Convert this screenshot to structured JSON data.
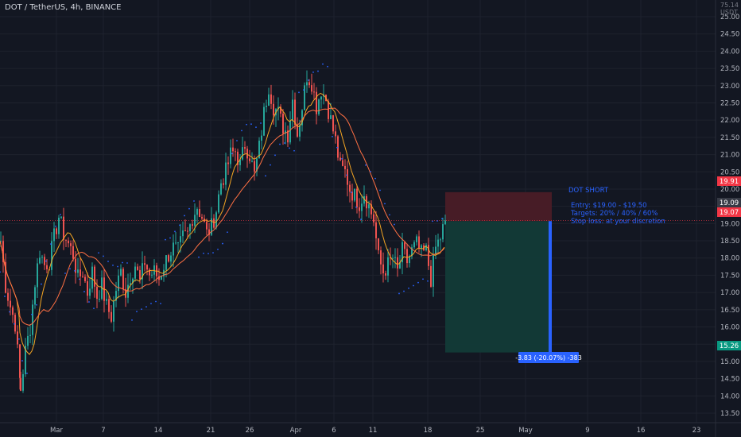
{
  "header": {
    "symbol_line": "DOT / TetherUS, 4h, BINANCE",
    "currency": "USDT",
    "scale_label": "75.14"
  },
  "colors": {
    "background": "#131722",
    "grid": "#1e222d",
    "up": "#26a69a",
    "down": "#ef5350",
    "ma_fast": "#f5a623",
    "ma_slow": "#ff7043",
    "sar": "#2962ff",
    "stop_zone": "#4a1c27",
    "target_zone": "#123b38",
    "note": "#2962ff"
  },
  "chart_data": {
    "type": "candlestick",
    "title": "DOT / TetherUS, 4h, BINANCE",
    "y_unit": "USDT",
    "ylim": [
      12.9,
      25.2
    ],
    "y_ticks": [
      13.5,
      14.0,
      14.5,
      15.0,
      15.5,
      16.0,
      16.5,
      17.0,
      17.5,
      18.0,
      18.5,
      19.0,
      19.5,
      20.0,
      20.5,
      21.0,
      21.5,
      22.0,
      22.5,
      23.0,
      23.5,
      24.0,
      24.5,
      25.0
    ],
    "x_ticks": [
      "Mar",
      "7",
      "14",
      "21",
      "26",
      "Apr",
      "6",
      "11",
      "18",
      "25",
      "May",
      "9",
      "16",
      "23"
    ],
    "grid": true,
    "price_path_close": [
      [
        0,
        18.5
      ],
      [
        6,
        17.2
      ],
      [
        12,
        16.6
      ],
      [
        18,
        16.1
      ],
      [
        25,
        14.2
      ],
      [
        31,
        15.3
      ],
      [
        37,
        16.0
      ],
      [
        43,
        17.3
      ],
      [
        49,
        18.2
      ],
      [
        55,
        17.8
      ],
      [
        61,
        17.9
      ],
      [
        67,
        18.6
      ],
      [
        73,
        19.2
      ],
      [
        79,
        18.7
      ],
      [
        85,
        18.4
      ],
      [
        91,
        18.1
      ],
      [
        97,
        17.4
      ],
      [
        103,
        17.6
      ],
      [
        109,
        17.0
      ],
      [
        115,
        17.6
      ],
      [
        121,
        16.9
      ],
      [
        127,
        17.2
      ],
      [
        133,
        16.6
      ],
      [
        139,
        16.3
      ],
      [
        145,
        17.1
      ],
      [
        151,
        17.6
      ],
      [
        157,
        17.0
      ],
      [
        163,
        17.5
      ],
      [
        169,
        17.8
      ],
      [
        175,
        17.3
      ],
      [
        181,
        17.9
      ],
      [
        187,
        17.5
      ],
      [
        193,
        17.6
      ],
      [
        199,
        17.4
      ],
      [
        205,
        17.8
      ],
      [
        211,
        18.1
      ],
      [
        217,
        18.3
      ],
      [
        223,
        18.2
      ],
      [
        229,
        18.6
      ],
      [
        235,
        18.7
      ],
      [
        241,
        19.2
      ],
      [
        247,
        19.5
      ],
      [
        253,
        19.2
      ],
      [
        259,
        18.7
      ],
      [
        265,
        18.9
      ],
      [
        271,
        19.4
      ],
      [
        277,
        20.2
      ],
      [
        283,
        20.5
      ],
      [
        289,
        21.0
      ],
      [
        295,
        21.1
      ],
      [
        301,
        20.7
      ],
      [
        307,
        21.3
      ],
      [
        313,
        21.0
      ],
      [
        319,
        20.4
      ],
      [
        325,
        21.2
      ],
      [
        331,
        22.2
      ],
      [
        337,
        23.0
      ],
      [
        343,
        22.4
      ],
      [
        349,
        22.2
      ],
      [
        355,
        21.8
      ],
      [
        361,
        21.6
      ],
      [
        367,
        22.6
      ],
      [
        373,
        21.6
      ],
      [
        379,
        22.4
      ],
      [
        385,
        23.3
      ],
      [
        391,
        23.1
      ],
      [
        397,
        22.4
      ],
      [
        403,
        22.9
      ],
      [
        409,
        22.6
      ],
      [
        415,
        22.0
      ],
      [
        421,
        21.4
      ],
      [
        427,
        20.6
      ],
      [
        433,
        20.5
      ],
      [
        439,
        20.0
      ],
      [
        445,
        19.8
      ],
      [
        451,
        19.6
      ],
      [
        457,
        19.9
      ],
      [
        463,
        19.5
      ],
      [
        469,
        19.1
      ],
      [
        475,
        18.0
      ],
      [
        481,
        17.6
      ],
      [
        487,
        17.8
      ],
      [
        493,
        18.0
      ],
      [
        499,
        17.6
      ],
      [
        505,
        18.2
      ],
      [
        511,
        17.9
      ],
      [
        517,
        18.2
      ],
      [
        523,
        18.4
      ],
      [
        529,
        18.1
      ],
      [
        535,
        18.2
      ],
      [
        541,
        17.4
      ],
      [
        547,
        18.3
      ],
      [
        553,
        18.6
      ],
      [
        559,
        19.09
      ]
    ],
    "trade_plan": {
      "name": "DOT SHORT",
      "entry_range": "$19.00 - $19.50",
      "targets": "20% / 40% / 60%",
      "stop_loss": "at your discretion",
      "stop_price": 19.91,
      "entry_price": 19.07,
      "target_price": 15.26,
      "measure": "-3.83 (-20.07%) -383"
    },
    "price_labels": {
      "stop": "19.91",
      "current": "19.09",
      "entry": "19.07",
      "target": "15.26"
    }
  },
  "annotation": {
    "title": "DOT SHORT",
    "line1": "Entry: $19.00 - $19.50",
    "line2": "Targets: 20% / 40% / 60%",
    "line3": "Stop loss: at your discretion"
  }
}
